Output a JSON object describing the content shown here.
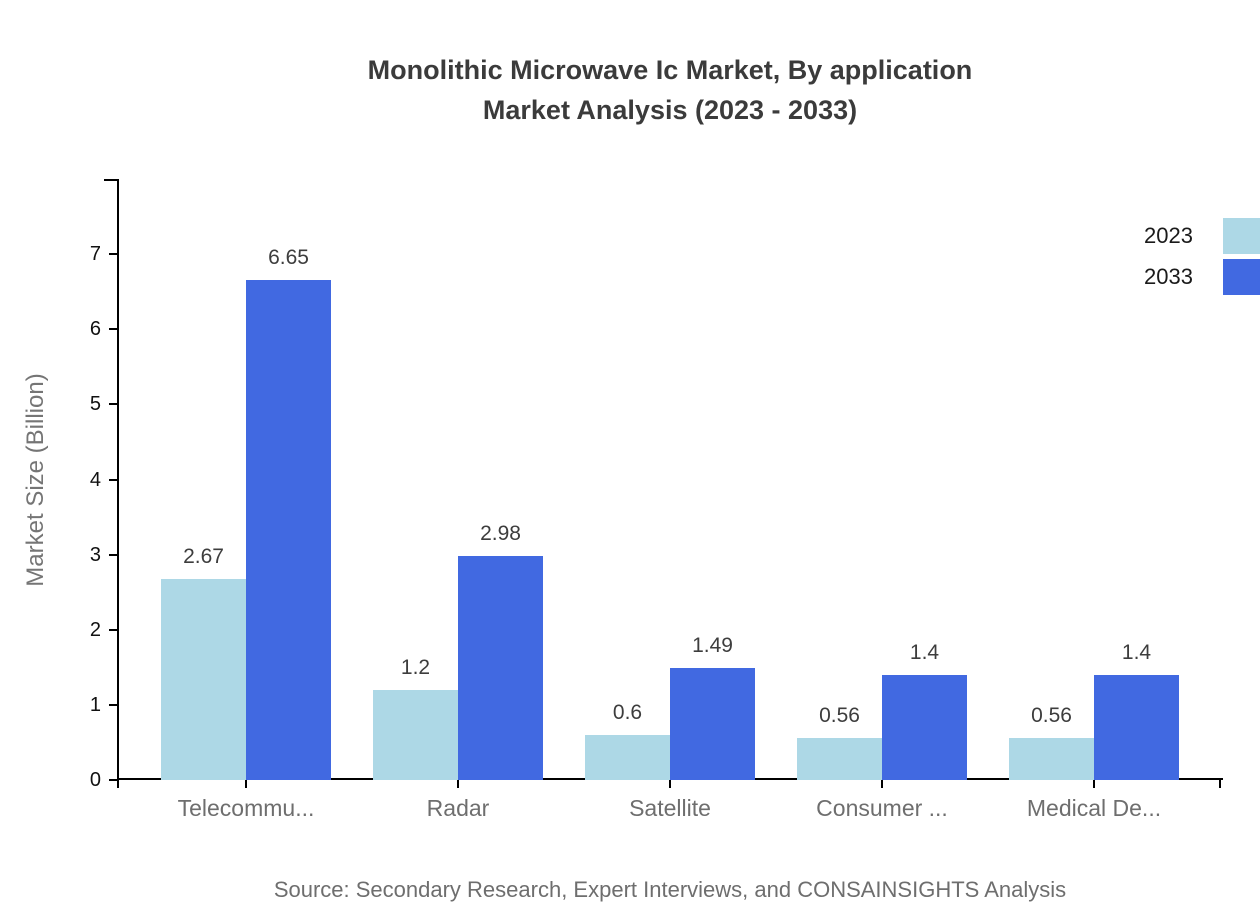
{
  "title": {
    "line1": "Monolithic Microwave Ic Market, By application",
    "line2": "Market Analysis (2023 - 2033)"
  },
  "source": "Source: Secondary Research, Expert Interviews, and CONSAINSIGHTS Analysis",
  "chart_data": {
    "type": "bar",
    "title": "Monolithic Microwave Ic Market, By application Market Analysis (2023 - 2033)",
    "categories": [
      "Telecommu...",
      "Radar",
      "Satellite",
      "Consumer ...",
      "Medical De..."
    ],
    "series": [
      {
        "name": "2023",
        "color": "#ADD8E6",
        "values": [
          2.67,
          1.2,
          0.6,
          0.56,
          0.56
        ]
      },
      {
        "name": "2033",
        "color": "#4169E1",
        "values": [
          6.65,
          2.98,
          1.49,
          1.4,
          1.4
        ]
      }
    ],
    "xlabel": "",
    "ylabel": "Market Size (Billion)",
    "ylim": [
      0,
      8
    ],
    "yticks": [
      0,
      1,
      2,
      3,
      4,
      5,
      6,
      7
    ],
    "grid": false,
    "legend_position": "top-right",
    "value_labels": true,
    "axis_color": "#000000"
  }
}
